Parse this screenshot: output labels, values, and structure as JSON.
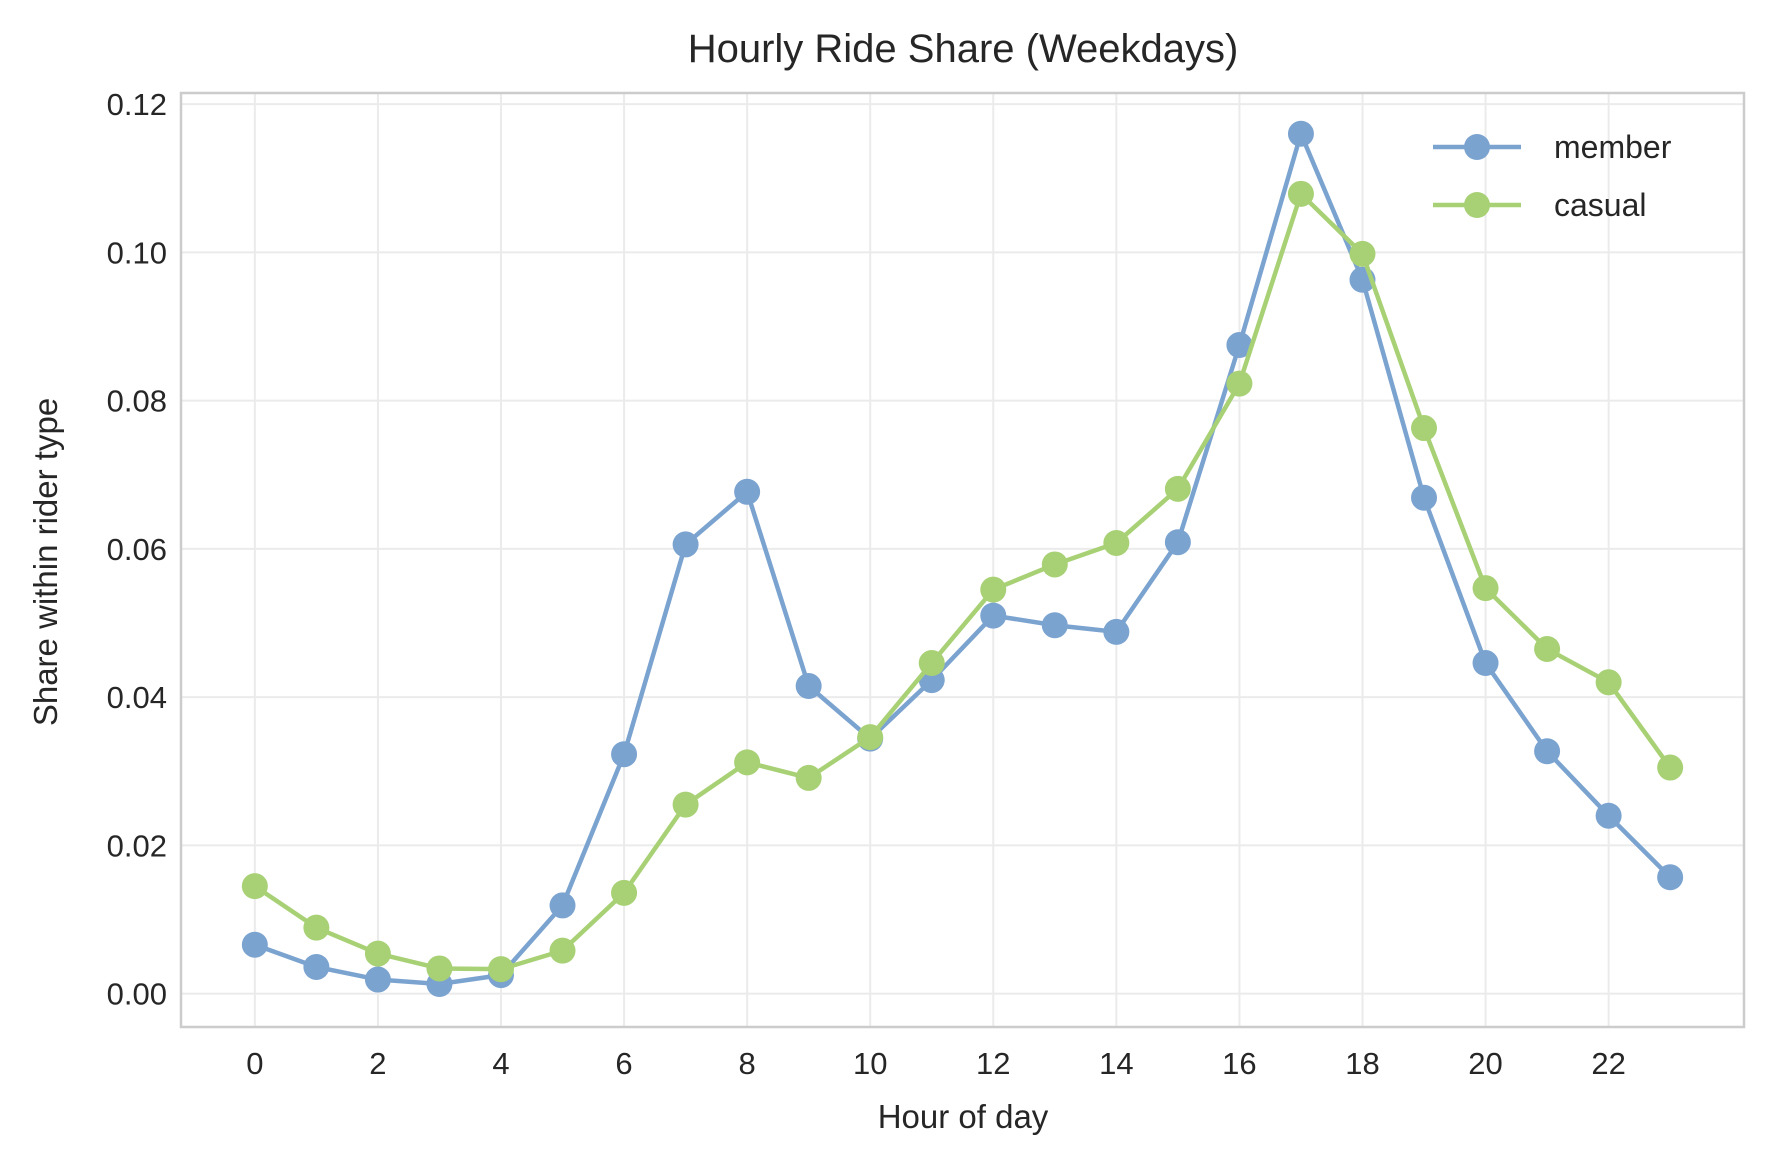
{
  "chart_data": {
    "type": "line",
    "title": "Hourly Ride Share (Weekdays)",
    "xlabel": "Hour of day",
    "ylabel": "Share within rider type",
    "xlim": [
      -1.2,
      24.2
    ],
    "ylim": [
      -0.0045,
      0.1215
    ],
    "x_ticks": [
      0,
      2,
      4,
      6,
      8,
      10,
      12,
      14,
      16,
      18,
      20,
      22
    ],
    "x_tick_labels": [
      "0",
      "2",
      "4",
      "6",
      "8",
      "10",
      "12",
      "14",
      "16",
      "18",
      "20",
      "22"
    ],
    "y_ticks": [
      0.0,
      0.02,
      0.04,
      0.06,
      0.08,
      0.1,
      0.12
    ],
    "y_tick_labels": [
      "0.00",
      "0.02",
      "0.04",
      "0.06",
      "0.08",
      "0.10",
      "0.12"
    ],
    "grid": true,
    "legend_position": "top-right",
    "x": [
      0,
      1,
      2,
      3,
      4,
      5,
      6,
      7,
      8,
      9,
      10,
      11,
      12,
      13,
      14,
      15,
      16,
      17,
      18,
      19,
      20,
      21,
      22,
      23
    ],
    "series": [
      {
        "name": "member",
        "color": "#7BA3D0",
        "values": [
          0.0066,
          0.0036,
          0.0019,
          0.0013,
          0.0025,
          0.0119,
          0.0323,
          0.0606,
          0.0677,
          0.0415,
          0.0344,
          0.0423,
          0.051,
          0.0497,
          0.0488,
          0.0609,
          0.0875,
          0.116,
          0.0963,
          0.0669,
          0.0446,
          0.0327,
          0.024,
          0.0157
        ]
      },
      {
        "name": "casual",
        "color": "#A8D175",
        "values": [
          0.0145,
          0.0089,
          0.0054,
          0.0034,
          0.0033,
          0.0058,
          0.0136,
          0.0255,
          0.0312,
          0.0291,
          0.0346,
          0.0446,
          0.0545,
          0.0579,
          0.0608,
          0.0681,
          0.0823,
          0.1079,
          0.0998,
          0.0763,
          0.0547,
          0.0465,
          0.042,
          0.0305
        ]
      }
    ]
  }
}
